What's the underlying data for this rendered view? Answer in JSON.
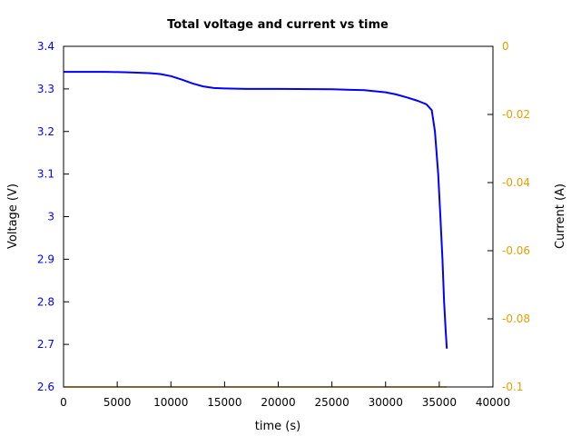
{
  "chart_data": {
    "type": "line",
    "title": "Total voltage and current vs time",
    "xlabel": "time (s)",
    "ylabel": "Voltage (V)",
    "y2label": "Current (A)",
    "xlim": [
      0,
      40000
    ],
    "ylim": [
      2.6,
      3.4
    ],
    "y2lim": [
      -0.1,
      0
    ],
    "grid": false,
    "legend": null,
    "xticks": [
      "0",
      "5000",
      "10000",
      "15000",
      "20000",
      "25000",
      "30000",
      "35000",
      "40000"
    ],
    "yticks": [
      "2.6",
      "2.7",
      "2.8",
      "2.9",
      "3",
      "3.1",
      "3.2",
      "3.3",
      "3.4"
    ],
    "y2ticks": [
      "-0.1",
      "-0.08",
      "-0.06",
      "-0.04",
      "-0.02",
      "0"
    ],
    "colors": {
      "voltage": "#0000ff",
      "current": "#e69f00",
      "axes": "#000000"
    },
    "series": [
      {
        "name": "Voltage",
        "axis": "left",
        "color": "#0000ff",
        "x": [
          0,
          2000,
          4000,
          6000,
          8000,
          9000,
          10000,
          11000,
          12000,
          13000,
          14000,
          15000,
          17000,
          20000,
          25000,
          28000,
          30000,
          31000,
          32000,
          33000,
          33800,
          34300,
          34600,
          34900,
          35100,
          35300,
          35450,
          35600,
          35700
        ],
        "values": [
          3.34,
          3.34,
          3.34,
          3.339,
          3.337,
          3.335,
          3.33,
          3.322,
          3.313,
          3.306,
          3.302,
          3.301,
          3.3,
          3.3,
          3.299,
          3.297,
          3.292,
          3.287,
          3.28,
          3.272,
          3.264,
          3.25,
          3.2,
          3.1,
          3.0,
          2.9,
          2.8,
          2.73,
          2.69
        ]
      },
      {
        "name": "Current",
        "axis": "right",
        "color": "#e69f00",
        "x": [
          0,
          35700
        ],
        "values": [
          -0.1,
          -0.1
        ]
      }
    ]
  }
}
